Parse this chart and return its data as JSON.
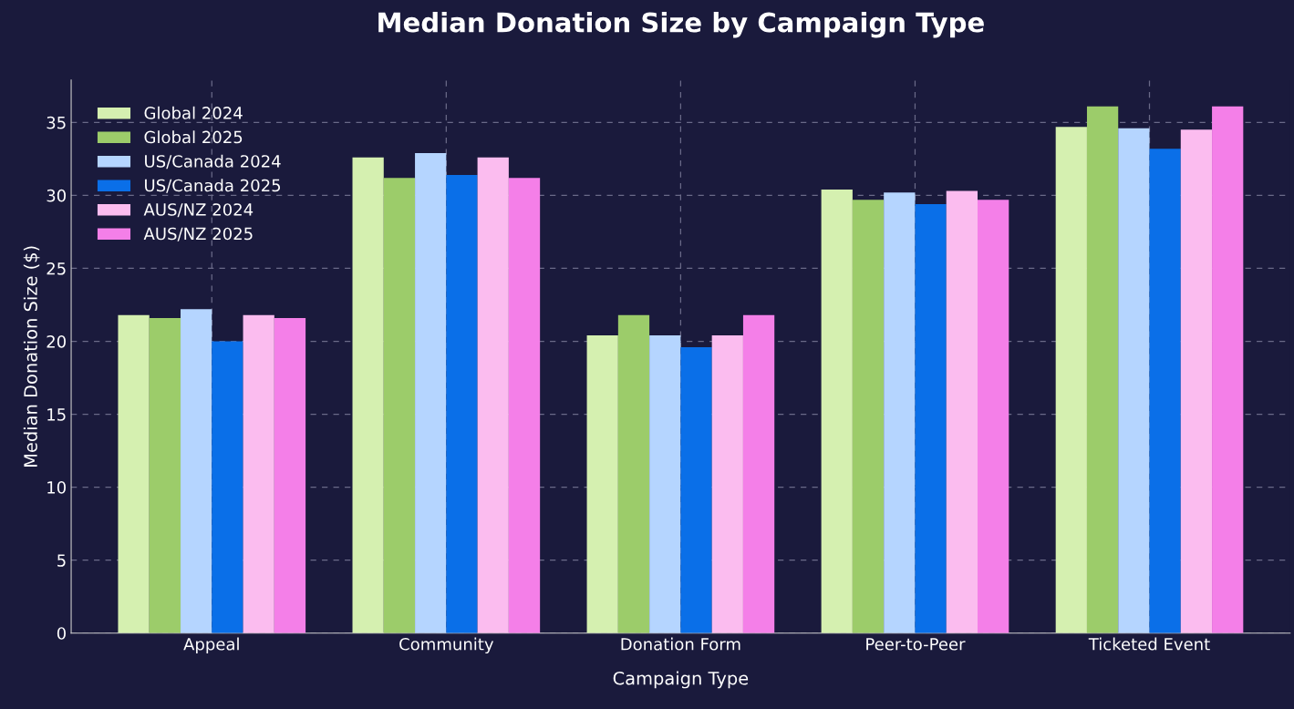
{
  "chart_data": {
    "type": "bar",
    "title": "Median Donation Size by Campaign Type",
    "xlabel": "Campaign Type",
    "ylabel": "Median Donation Size ($)",
    "categories": [
      "Appeal",
      "Community",
      "Donation Form",
      "Peer-to-Peer",
      "Ticketed Event"
    ],
    "series": [
      {
        "name": "Global 2024",
        "color": "#d5f0b0",
        "values": [
          21.8,
          32.6,
          20.4,
          30.4,
          34.7
        ]
      },
      {
        "name": "Global 2025",
        "color": "#9ccc6a",
        "values": [
          21.6,
          31.2,
          21.8,
          29.7,
          36.1
        ]
      },
      {
        "name": "US/Canada 2024",
        "color": "#b5d5ff",
        "values": [
          22.2,
          32.9,
          20.4,
          30.2,
          34.6
        ]
      },
      {
        "name": "US/Canada 2025",
        "color": "#0a6fe8",
        "values": [
          20.0,
          31.4,
          19.6,
          29.4,
          33.2
        ]
      },
      {
        "name": "AUS/NZ 2024",
        "color": "#fbbcef",
        "values": [
          21.8,
          32.6,
          20.4,
          30.3,
          34.5
        ]
      },
      {
        "name": "AUS/NZ 2025",
        "color": "#f47fe8",
        "values": [
          21.6,
          31.2,
          21.8,
          29.7,
          36.1
        ]
      }
    ],
    "ylim": [
      0,
      37.9
    ],
    "yticks": [
      0,
      5,
      10,
      15,
      20,
      25,
      30,
      35
    ],
    "grid": true,
    "legend": "top left"
  }
}
